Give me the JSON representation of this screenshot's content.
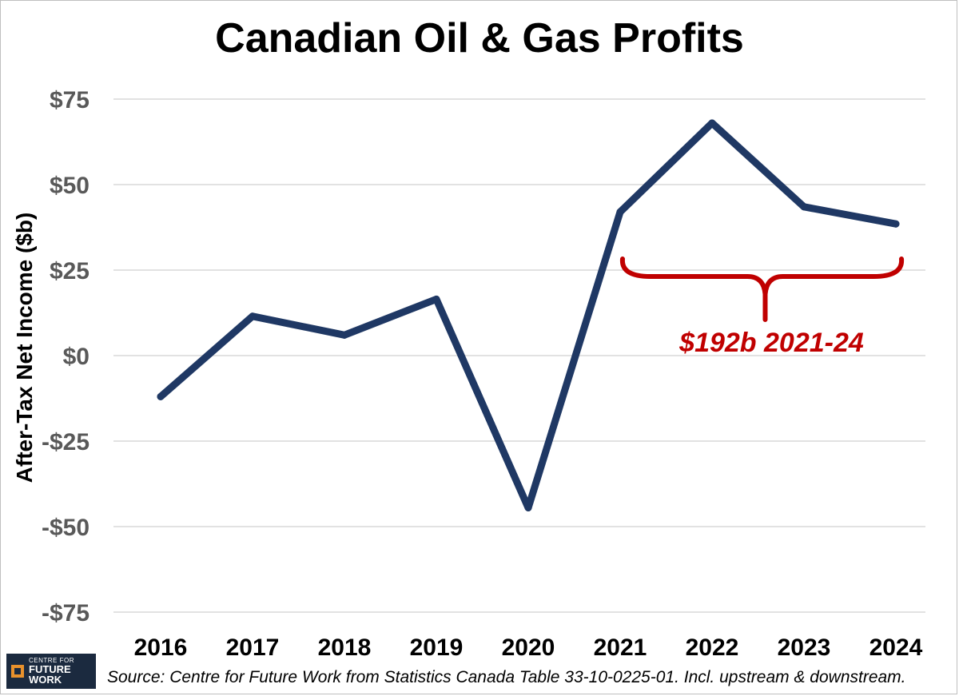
{
  "chart_data": {
    "type": "line",
    "title": "Canadian Oil & Gas Profits",
    "ylabel": "After-Tax Net Income ($b)",
    "xlabel": "",
    "categories": [
      "2016",
      "2017",
      "2018",
      "2019",
      "2020",
      "2021",
      "2022",
      "2023",
      "2024"
    ],
    "series": [
      {
        "values": [
          -12,
          11.5,
          6,
          16.5,
          -44.5,
          42,
          68,
          43.5,
          38.5
        ],
        "color": "#1f3864"
      }
    ],
    "ylim": [
      -75,
      75
    ],
    "yticks": [
      75,
      50,
      25,
      0,
      -25,
      -50,
      -75
    ],
    "ytick_labels": [
      "$75",
      "$50",
      "$25",
      "$0",
      "-$25",
      "-$50",
      "-$75"
    ],
    "grid": "horizontal",
    "legend": "none",
    "annotation": {
      "text": "$192b 2021-24",
      "color": "#c00000",
      "brace_from": "2021",
      "brace_to": "2024",
      "brace_level": 25
    }
  },
  "footer": {
    "logo_line1": "CENTRE FOR",
    "logo_line2": "FUTURE WORK",
    "source": "Source: Centre for Future Work from Statistics Canada Table 33-10-0225-01. Incl. upstream & downstream."
  }
}
